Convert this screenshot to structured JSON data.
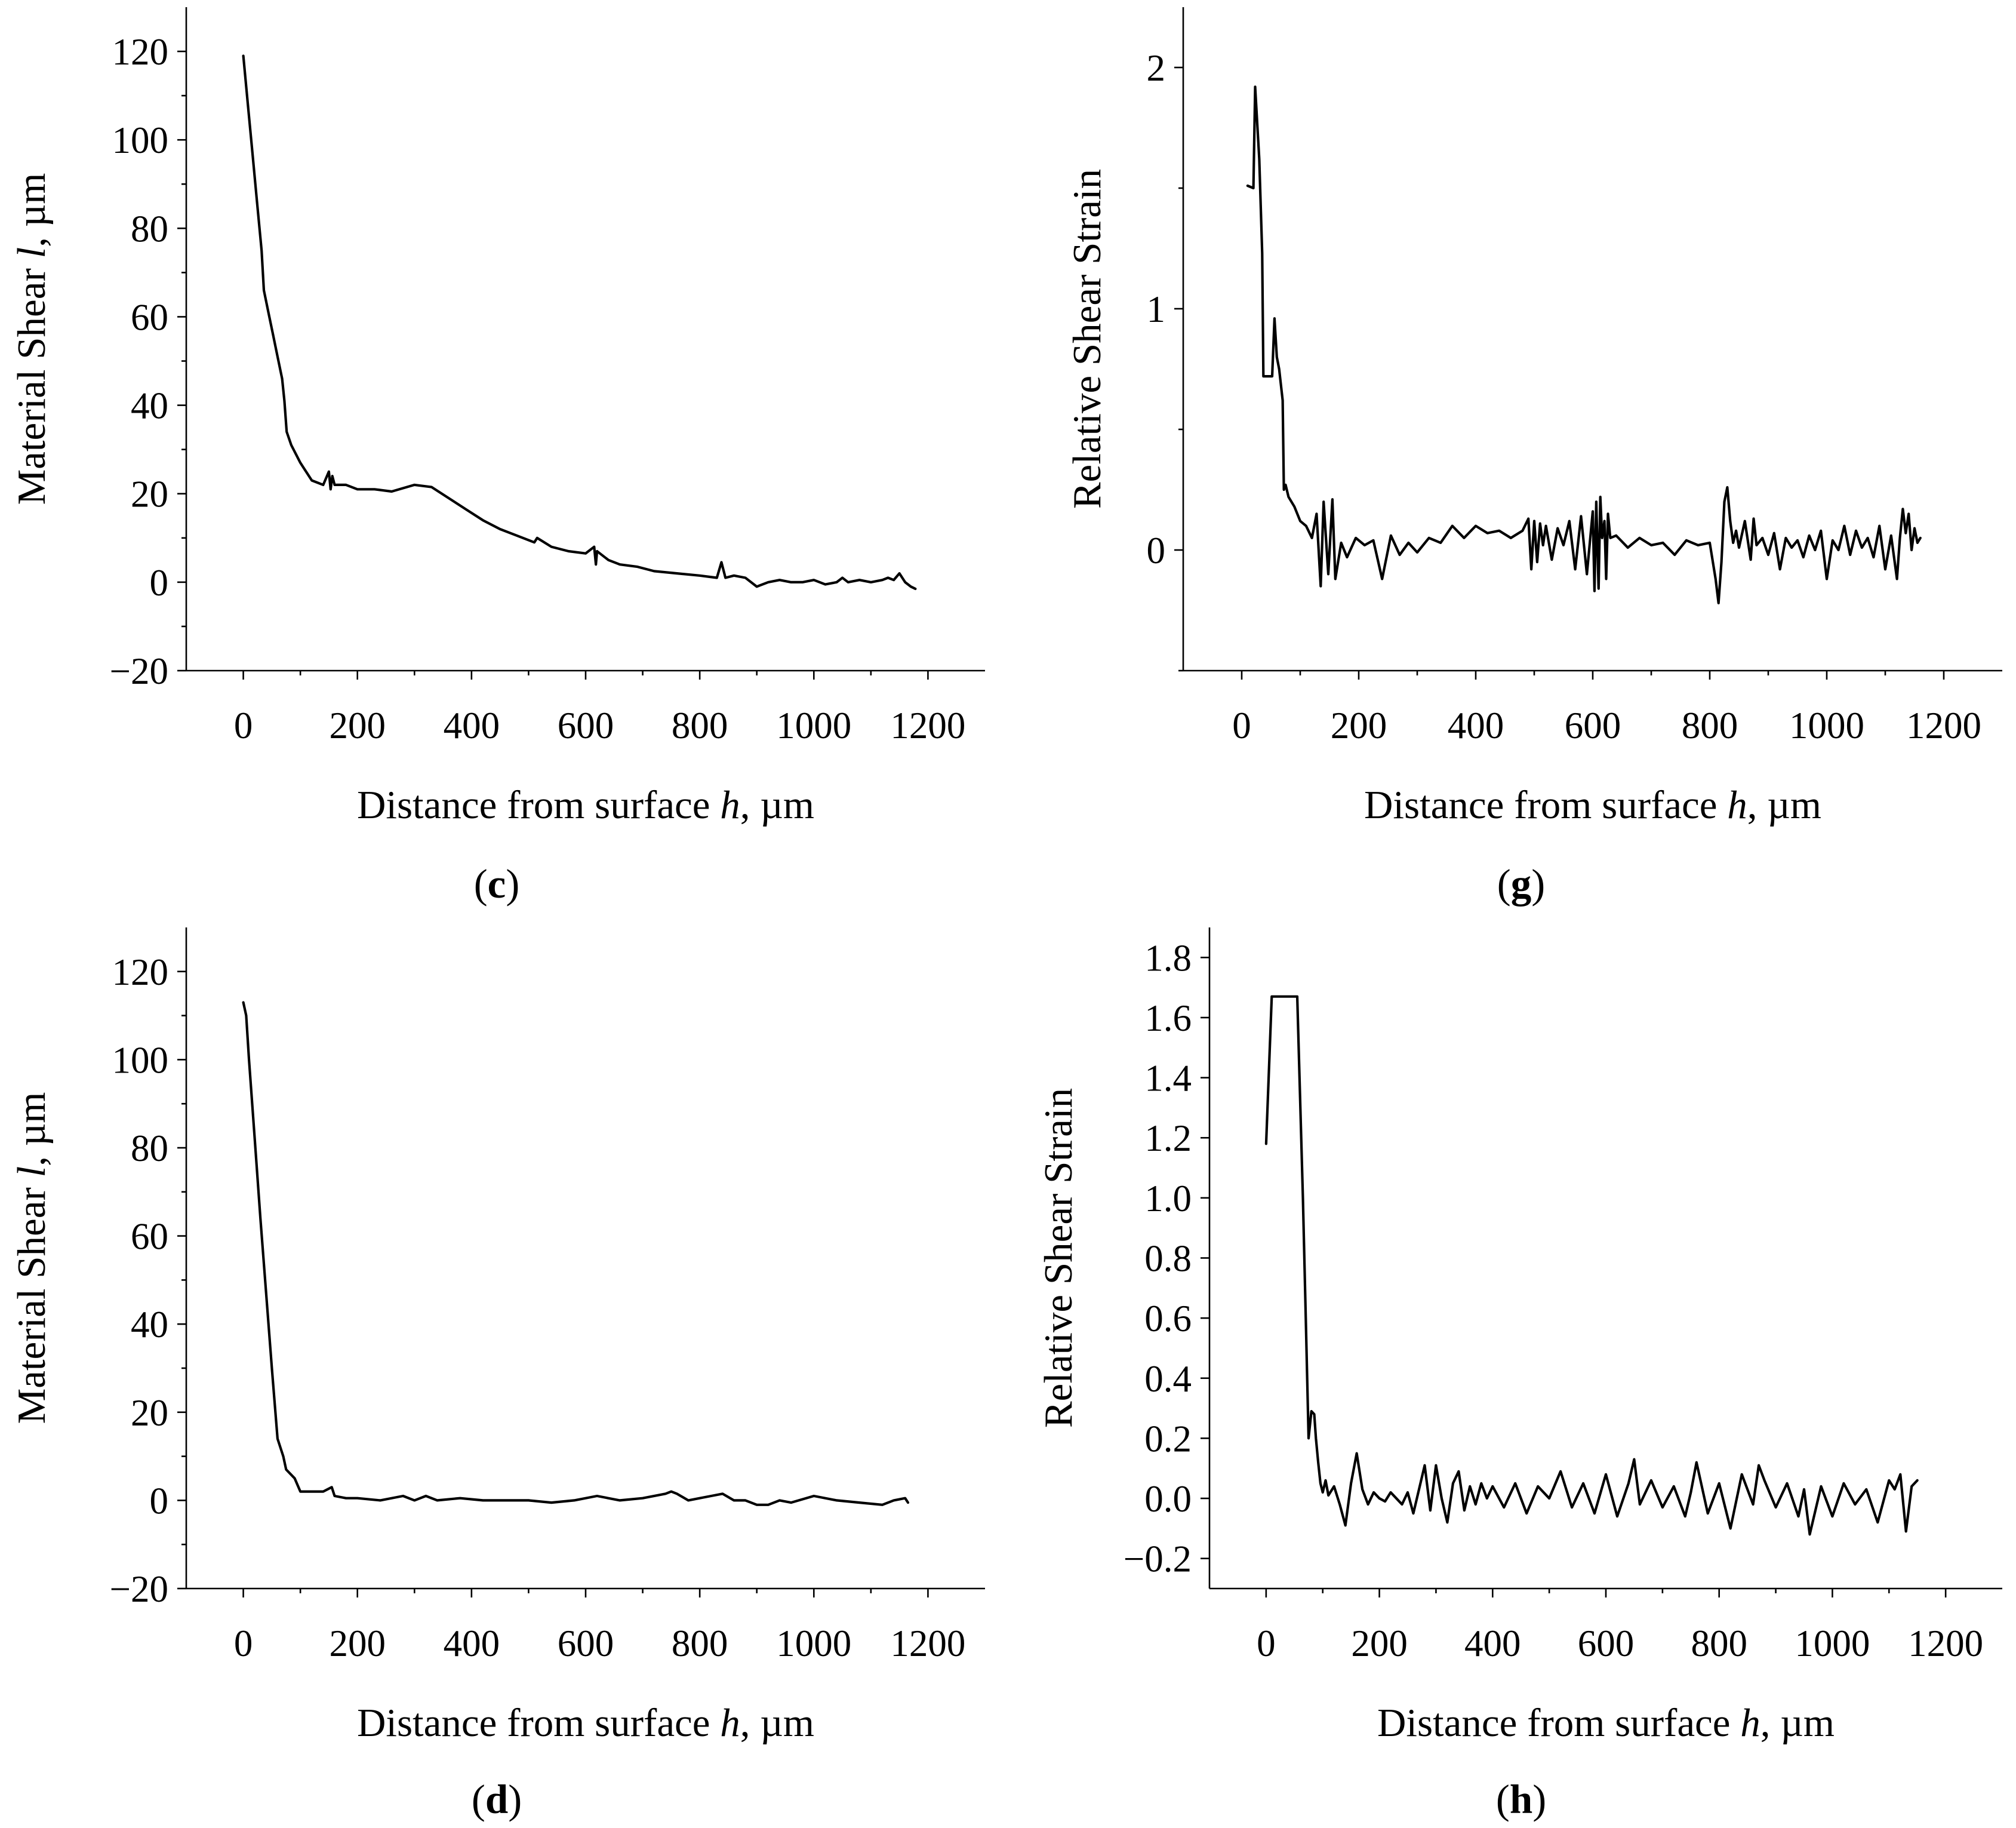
{
  "figure": {
    "panels": [
      "c",
      "g",
      "d",
      "h"
    ]
  },
  "chart_data": [
    {
      "id": "c",
      "type": "line",
      "panel_label": "c",
      "xlabel": "Distance from surface h, µm",
      "xlabel_parts": [
        "Distance from surface ",
        "h",
        ", µm"
      ],
      "ylabel": "Material Shear l, µm",
      "ylabel_parts": [
        "Material Shear ",
        "l",
        ", µm"
      ],
      "xlim": [
        -100,
        1300
      ],
      "ylim": [
        -20,
        130
      ],
      "xticks": [
        0,
        200,
        400,
        600,
        800,
        1000,
        1200
      ],
      "xtick_labels": [
        "0",
        "200",
        "400",
        "600",
        "800",
        "1000",
        "1200"
      ],
      "yticks": [
        -20,
        0,
        20,
        40,
        60,
        80,
        100,
        120
      ],
      "ytick_labels": [
        "−20",
        "0",
        "20",
        "40",
        "60",
        "80",
        "100",
        "120"
      ],
      "minor_x": [
        100,
        300,
        500,
        700,
        900,
        1100
      ],
      "minor_y": [
        -10,
        10,
        30,
        50,
        70,
        90,
        110
      ],
      "series": [
        {
          "name": "Material Shear",
          "x": [
            0,
            8,
            16,
            24,
            32,
            36,
            44,
            52,
            60,
            68,
            72,
            76,
            84,
            100,
            120,
            140,
            150,
            153,
            156,
            160,
            180,
            200,
            230,
            260,
            300,
            330,
            360,
            390,
            420,
            450,
            480,
            510,
            515,
            540,
            570,
            600,
            615,
            618,
            620,
            640,
            660,
            690,
            720,
            760,
            800,
            830,
            838,
            845,
            860,
            880,
            900,
            920,
            940,
            960,
            980,
            1000,
            1020,
            1040,
            1050,
            1060,
            1080,
            1100,
            1120,
            1130,
            1140,
            1150,
            1160,
            1170,
            1178
          ],
          "y": [
            119,
            108,
            97,
            86,
            75,
            66,
            61,
            56,
            51,
            46,
            41,
            34,
            31,
            27,
            23,
            22,
            25,
            21,
            24,
            22,
            22,
            21,
            21,
            20.5,
            22,
            21.5,
            19,
            16.5,
            14,
            12,
            10.5,
            9,
            10,
            8,
            7,
            6.5,
            8,
            4,
            7,
            5,
            4,
            3.5,
            2.5,
            2,
            1.5,
            1,
            4.5,
            1,
            1.5,
            1,
            -1,
            0,
            0.5,
            0,
            0,
            0.5,
            -0.5,
            0,
            1,
            0,
            0.5,
            0,
            0.5,
            1,
            0.5,
            2,
            0,
            -1,
            -1.5
          ]
        }
      ]
    },
    {
      "id": "g",
      "type": "line",
      "panel_label": "g",
      "xlabel": "Distance from surface h, µm",
      "xlabel_parts": [
        "Distance from surface ",
        "h",
        ", µm"
      ],
      "ylabel": "Relative Shear Strain",
      "ylabel_parts": [
        "Relative Shear Strain",
        "",
        ""
      ],
      "xlim": [
        -100,
        1300
      ],
      "ylim": [
        -0.5,
        2.25
      ],
      "xticks": [
        0,
        200,
        400,
        600,
        800,
        1000,
        1200
      ],
      "xtick_labels": [
        "0",
        "200",
        "400",
        "600",
        "800",
        "1000",
        "1200"
      ],
      "yticks": [
        0,
        1,
        2
      ],
      "ytick_labels": [
        "0",
        "1",
        "2"
      ],
      "minor_x": [
        100,
        300,
        500,
        700,
        900,
        1100
      ],
      "minor_y": [
        -0.5,
        0.5,
        1.5
      ],
      "series": [
        {
          "name": "Relative Shear Strain",
          "x": [
            10,
            20,
            23,
            30,
            35,
            37,
            45,
            52,
            56,
            60,
            64,
            70,
            72,
            75,
            80,
            90,
            100,
            110,
            120,
            128,
            135,
            140,
            148,
            155,
            160,
            170,
            180,
            195,
            210,
            225,
            240,
            255,
            270,
            285,
            300,
            320,
            340,
            360,
            380,
            400,
            420,
            440,
            460,
            480,
            490,
            495,
            500,
            505,
            510,
            515,
            520,
            530,
            540,
            550,
            560,
            570,
            580,
            590,
            600,
            603,
            606,
            610,
            613,
            616,
            620,
            623,
            626,
            630,
            640,
            660,
            680,
            700,
            720,
            740,
            760,
            780,
            800,
            810,
            815,
            820,
            825,
            830,
            835,
            840,
            845,
            850,
            860,
            870,
            875,
            880,
            890,
            900,
            910,
            920,
            930,
            940,
            950,
            960,
            970,
            980,
            990,
            1000,
            1010,
            1020,
            1030,
            1040,
            1050,
            1060,
            1070,
            1080,
            1090,
            1100,
            1110,
            1120,
            1125,
            1130,
            1135,
            1140,
            1145,
            1150,
            1155,
            1160
          ],
          "y": [
            1.51,
            1.5,
            1.92,
            1.62,
            1.23,
            0.72,
            0.72,
            0.72,
            0.96,
            0.8,
            0.75,
            0.62,
            0.25,
            0.27,
            0.22,
            0.18,
            0.12,
            0.1,
            0.05,
            0.15,
            -0.15,
            0.2,
            -0.1,
            0.21,
            -0.12,
            0.03,
            -0.03,
            0.05,
            0.02,
            0.04,
            -0.12,
            0.06,
            -0.02,
            0.03,
            -0.01,
            0.05,
            0.03,
            0.1,
            0.05,
            0.1,
            0.07,
            0.08,
            0.05,
            0.08,
            0.13,
            -0.08,
            0.12,
            -0.05,
            0.11,
            0.02,
            0.1,
            -0.04,
            0.09,
            0.02,
            0.12,
            -0.08,
            0.14,
            -0.1,
            0.16,
            -0.17,
            0.2,
            -0.16,
            0.22,
            0.05,
            0.12,
            -0.12,
            0.15,
            0.05,
            0.06,
            0.01,
            0.05,
            0.02,
            0.03,
            -0.02,
            0.04,
            0.02,
            0.03,
            -0.12,
            -0.22,
            -0.05,
            0.2,
            0.26,
            0.12,
            0.03,
            0.08,
            0.01,
            0.12,
            -0.04,
            0.13,
            0.02,
            0.05,
            -0.02,
            0.07,
            -0.08,
            0.05,
            0.01,
            0.04,
            -0.03,
            0.06,
            0.0,
            0.08,
            -0.12,
            0.04,
            0.0,
            0.1,
            -0.02,
            0.08,
            0.01,
            0.05,
            -0.03,
            0.1,
            -0.08,
            0.06,
            -0.12,
            0.05,
            0.17,
            0.07,
            0.15,
            0.0,
            0.09,
            0.03,
            0.05
          ]
        }
      ]
    },
    {
      "id": "d",
      "type": "line",
      "panel_label": "d",
      "xlabel": "Distance from surface h, µm",
      "xlabel_parts": [
        "Distance from surface ",
        "h",
        ", µm"
      ],
      "ylabel": "Material Shear l, µm",
      "ylabel_parts": [
        "Material Shear ",
        "l",
        ", µm"
      ],
      "xlim": [
        -100,
        1300
      ],
      "ylim": [
        -20,
        130
      ],
      "xticks": [
        0,
        200,
        400,
        600,
        800,
        1000,
        1200
      ],
      "xtick_labels": [
        "0",
        "200",
        "400",
        "600",
        "800",
        "1000",
        "1200"
      ],
      "yticks": [
        -20,
        0,
        20,
        40,
        60,
        80,
        100,
        120
      ],
      "ytick_labels": [
        "−20",
        "0",
        "20",
        "40",
        "60",
        "80",
        "100",
        "120"
      ],
      "minor_x": [
        100,
        300,
        500,
        700,
        900,
        1100
      ],
      "minor_y": [
        -10,
        10,
        30,
        50,
        70,
        90,
        110
      ],
      "series": [
        {
          "name": "Material Shear",
          "x": [
            0,
            5,
            10,
            20,
            30,
            40,
            50,
            60,
            70,
            75,
            90,
            100,
            120,
            140,
            155,
            160,
            180,
            200,
            240,
            280,
            300,
            320,
            340,
            380,
            420,
            460,
            500,
            540,
            580,
            620,
            660,
            700,
            740,
            750,
            760,
            780,
            800,
            820,
            840,
            860,
            880,
            900,
            920,
            940,
            960,
            1000,
            1040,
            1080,
            1120,
            1140,
            1160,
            1165
          ],
          "y": [
            113,
            110,
            100,
            82,
            64,
            47,
            30,
            14,
            10,
            7,
            5,
            2,
            2,
            2,
            3,
            1,
            0.5,
            0.5,
            0,
            1,
            0,
            1,
            0,
            0.5,
            0,
            0,
            0,
            -0.5,
            0,
            1,
            0,
            0.5,
            1.5,
            2,
            1.5,
            0,
            0.5,
            1,
            1.5,
            0,
            0,
            -1,
            -1,
            0,
            -0.5,
            1,
            0,
            -0.5,
            -1,
            0,
            0.5,
            -0.5
          ]
        }
      ]
    },
    {
      "id": "h",
      "type": "line",
      "panel_label": "h",
      "xlabel": "Distance from surface h, µm",
      "xlabel_parts": [
        "Distance from surface ",
        "h",
        ", µm"
      ],
      "ylabel": "Relative Shear Strain",
      "ylabel_parts": [
        "Relative Shear Strain",
        "",
        ""
      ],
      "xlim": [
        -100,
        1300
      ],
      "ylim": [
        -0.3,
        1.9
      ],
      "xticks": [
        0,
        200,
        400,
        600,
        800,
        1000,
        1200
      ],
      "xtick_labels": [
        "0",
        "200",
        "400",
        "600",
        "800",
        "1000",
        "1200"
      ],
      "yticks": [
        -0.2,
        0.0,
        0.2,
        0.4,
        0.6,
        0.8,
        1.0,
        1.2,
        1.4,
        1.6,
        1.8
      ],
      "ytick_labels": [
        "−0.2",
        "0.0",
        "0.2",
        "0.4",
        "0.6",
        "0.8",
        "1.0",
        "1.2",
        "1.4",
        "1.6",
        "1.8"
      ],
      "minor_x": [
        100,
        300,
        500,
        700,
        900,
        1100
      ],
      "minor_y": [],
      "series": [
        {
          "name": "Relative Shear Strain",
          "x": [
            0,
            10,
            20,
            30,
            40,
            50,
            55,
            65,
            70,
            75,
            80,
            85,
            88,
            92,
            96,
            100,
            105,
            110,
            120,
            130,
            140,
            150,
            160,
            170,
            180,
            190,
            200,
            210,
            220,
            230,
            240,
            250,
            260,
            270,
            280,
            290,
            300,
            310,
            320,
            330,
            340,
            350,
            360,
            370,
            380,
            390,
            400,
            420,
            440,
            460,
            480,
            500,
            520,
            540,
            560,
            580,
            600,
            620,
            640,
            650,
            660,
            680,
            700,
            720,
            740,
            750,
            760,
            780,
            800,
            820,
            840,
            860,
            870,
            880,
            900,
            920,
            940,
            950,
            960,
            980,
            1000,
            1020,
            1040,
            1060,
            1080,
            1100,
            1110,
            1120,
            1130,
            1140,
            1150
          ],
          "y": [
            1.18,
            1.67,
            1.67,
            1.67,
            1.67,
            1.67,
            1.67,
            1.0,
            0.6,
            0.2,
            0.29,
            0.28,
            0.2,
            0.12,
            0.05,
            0.02,
            0.06,
            0.01,
            0.04,
            -0.02,
            -0.09,
            0.05,
            0.15,
            0.03,
            -0.02,
            0.02,
            0.0,
            -0.01,
            0.02,
            0.0,
            -0.02,
            0.02,
            -0.05,
            0.03,
            0.11,
            -0.04,
            0.11,
            0.0,
            -0.08,
            0.05,
            0.09,
            -0.04,
            0.04,
            -0.02,
            0.05,
            0.0,
            0.04,
            -0.03,
            0.05,
            -0.05,
            0.04,
            0.0,
            0.09,
            -0.03,
            0.05,
            -0.05,
            0.08,
            -0.06,
            0.05,
            0.13,
            -0.02,
            0.06,
            -0.03,
            0.04,
            -0.06,
            0.02,
            0.12,
            -0.05,
            0.05,
            -0.1,
            0.08,
            -0.02,
            0.11,
            0.06,
            -0.03,
            0.05,
            -0.06,
            0.03,
            -0.12,
            0.04,
            -0.06,
            0.05,
            -0.02,
            0.03,
            -0.08,
            0.06,
            0.03,
            0.08,
            -0.11,
            0.04,
            0.06
          ]
        }
      ]
    }
  ]
}
